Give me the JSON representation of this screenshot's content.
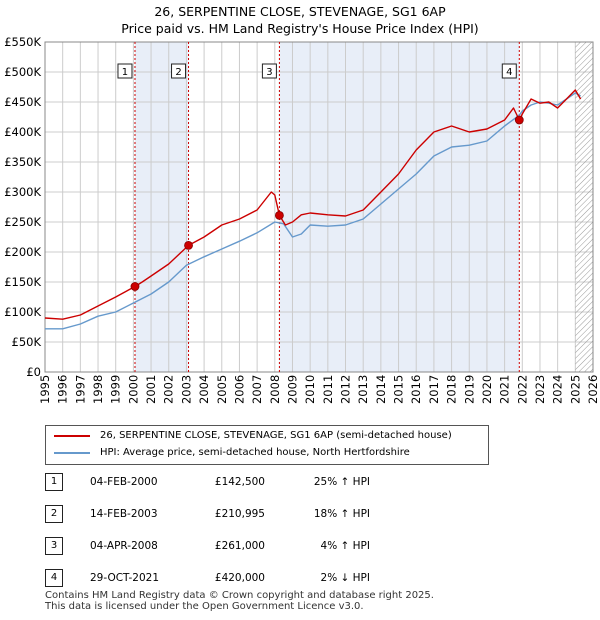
{
  "title_line1": "26, SERPENTINE CLOSE, STEVENAGE, SG1 6AP",
  "title_line2": "Price paid vs. HM Land Registry's House Price Index (HPI)",
  "colors": {
    "price_line": "#cc0000",
    "hpi_line": "#6699cc",
    "shade": "#e8eef8",
    "grid": "#cccccc",
    "vline": "#cc0000",
    "marker": "#cc0000"
  },
  "legend": {
    "price_label": "26, SERPENTINE CLOSE, STEVENAGE, SG1 6AP (semi-detached house)",
    "hpi_label": "HPI: Average price, semi-detached house, North Hertfordshire"
  },
  "sales": [
    {
      "num": "1",
      "date": "04-FEB-2000",
      "price": "£142,500",
      "hpi": "25% ↑ HPI"
    },
    {
      "num": "2",
      "date": "14-FEB-2003",
      "price": "£210,995",
      "hpi": "18% ↑ HPI"
    },
    {
      "num": "3",
      "date": "04-APR-2008",
      "price": "£261,000",
      "hpi": "4% ↑ HPI"
    },
    {
      "num": "4",
      "date": "29-OCT-2021",
      "price": "£420,000",
      "hpi": "2% ↓ HPI"
    }
  ],
  "footer_line1": "Contains HM Land Registry data © Crown copyright and database right 2025.",
  "footer_line2": "This data is licensed under the Open Government Licence v3.0.",
  "chart_data": {
    "type": "line",
    "title": "26, SERPENTINE CLOSE, STEVENAGE, SG1 6AP",
    "subtitle": "Price paid vs. HM Land Registry's House Price Index (HPI)",
    "xlabel": "",
    "ylabel": "",
    "xlim": [
      1995,
      2026
    ],
    "ylim": [
      0,
      550000
    ],
    "grid": true,
    "legend_position": "below",
    "y_ticks": [
      0,
      50000,
      100000,
      150000,
      200000,
      250000,
      300000,
      350000,
      400000,
      450000,
      500000,
      550000
    ],
    "y_tick_labels": [
      "£0",
      "£50K",
      "£100K",
      "£150K",
      "£200K",
      "£250K",
      "£300K",
      "£350K",
      "£400K",
      "£450K",
      "£500K",
      "£550K"
    ],
    "x_ticks": [
      "1995",
      "1996",
      "1997",
      "1998",
      "1999",
      "2000",
      "2001",
      "2002",
      "2003",
      "2004",
      "2005",
      "2006",
      "2007",
      "2008",
      "2009",
      "2010",
      "2011",
      "2012",
      "2013",
      "2014",
      "2015",
      "2016",
      "2017",
      "2018",
      "2019",
      "2020",
      "2021",
      "2022",
      "2023",
      "2024",
      "2025",
      "2026"
    ],
    "shaded_ranges": [
      [
        2000.09,
        2003.12
      ],
      [
        2008.26,
        2021.83
      ]
    ],
    "hatched_from": 2025.0,
    "series": [
      {
        "name": "26, SERPENTINE CLOSE, STEVENAGE, SG1 6AP (semi-detached house)",
        "color": "#cc0000",
        "x": [
          1995,
          1996,
          1997,
          1998,
          1999,
          2000.09,
          2000.5,
          2001,
          2002,
          2003.12,
          2004,
          2005,
          2006,
          2007,
          2007.8,
          2008,
          2008.26,
          2008.6,
          2009,
          2009.5,
          2010,
          2011,
          2012,
          2013,
          2014,
          2015,
          2016,
          2017,
          2018,
          2019,
          2020,
          2021,
          2021.5,
          2021.83,
          2022,
          2022.5,
          2023,
          2023.5,
          2024,
          2024.5,
          2025,
          2025.3
        ],
        "values": [
          90000,
          88000,
          95000,
          110000,
          125000,
          142500,
          150000,
          160000,
          180000,
          210995,
          225000,
          245000,
          255000,
          270000,
          300000,
          295000,
          261000,
          245000,
          250000,
          262000,
          265000,
          262000,
          260000,
          270000,
          300000,
          330000,
          370000,
          400000,
          410000,
          400000,
          405000,
          420000,
          440000,
          420000,
          430000,
          455000,
          448000,
          450000,
          440000,
          455000,
          470000,
          455000
        ]
      },
      {
        "name": "HPI: Average price, semi-detached house, North Hertfordshire",
        "color": "#6699cc",
        "x": [
          1995,
          1996,
          1997,
          1998,
          1999,
          2000,
          2001,
          2002,
          2003,
          2004,
          2005,
          2006,
          2007,
          2008,
          2008.5,
          2009,
          2009.5,
          2010,
          2011,
          2012,
          2013,
          2014,
          2015,
          2016,
          2017,
          2018,
          2019,
          2020,
          2021,
          2021.83,
          2022,
          2022.5,
          2023,
          2023.5,
          2024,
          2024.5,
          2025,
          2025.3
        ],
        "values": [
          72000,
          72000,
          80000,
          93000,
          100000,
          115000,
          130000,
          150000,
          178000,
          192000,
          205000,
          218000,
          232000,
          250000,
          247000,
          225000,
          230000,
          245000,
          243000,
          245000,
          255000,
          280000,
          305000,
          330000,
          360000,
          375000,
          378000,
          385000,
          410000,
          428000,
          435000,
          445000,
          450000,
          448000,
          445000,
          455000,
          465000,
          460000
        ]
      }
    ],
    "sale_markers": [
      {
        "label": "1",
        "x": 2000.09,
        "y": 142500
      },
      {
        "label": "2",
        "x": 2003.12,
        "y": 210995
      },
      {
        "label": "3",
        "x": 2008.26,
        "y": 261000
      },
      {
        "label": "4",
        "x": 2021.83,
        "y": 420000
      }
    ]
  }
}
